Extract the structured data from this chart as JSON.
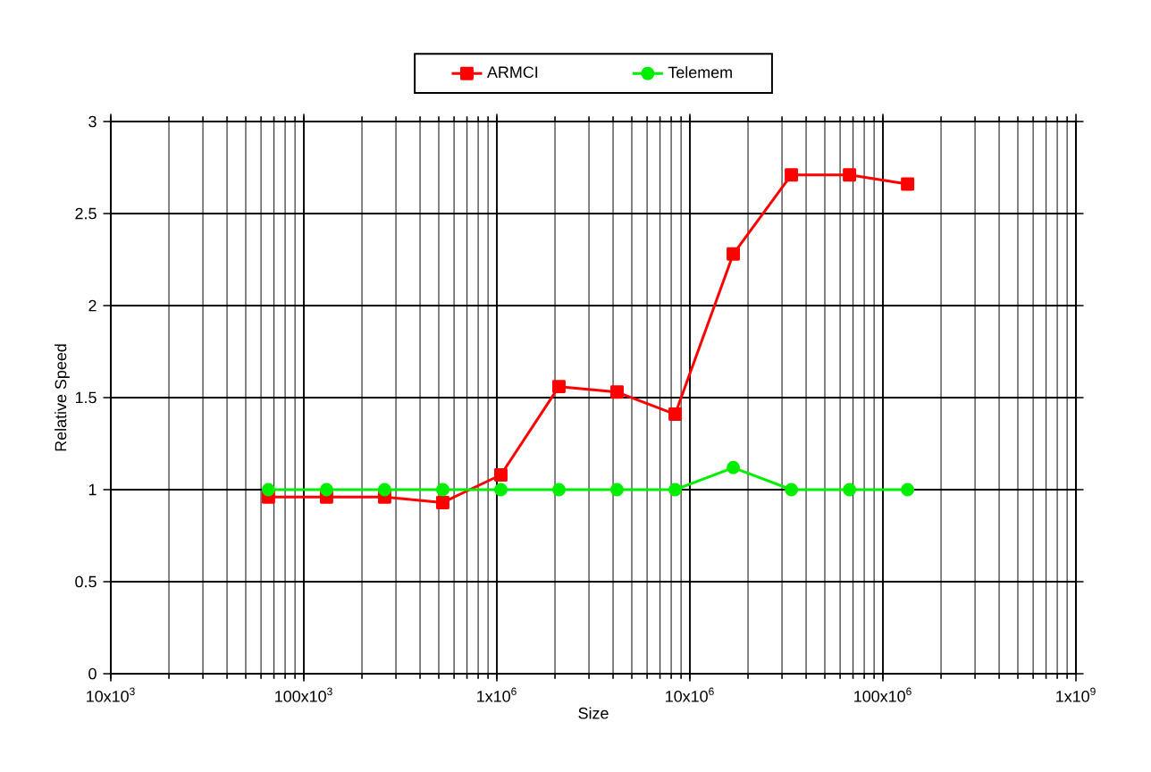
{
  "chart_data": {
    "type": "line",
    "xlabel": "Size",
    "ylabel": "Relative Speed",
    "x": [
      65536,
      131072,
      262144,
      524288,
      1048576,
      2097152,
      4194304,
      8388608,
      16777216,
      33554432,
      67108864,
      134217728
    ],
    "series": [
      {
        "name": "ARMCI",
        "color": "#ff0000",
        "marker": "square",
        "values": [
          0.96,
          0.96,
          0.96,
          0.93,
          1.08,
          1.56,
          1.53,
          1.41,
          2.28,
          2.71,
          2.71,
          2.66
        ]
      },
      {
        "name": "Telemem",
        "color": "#00ee00",
        "marker": "circle",
        "values": [
          1.0,
          1.0,
          1.0,
          1.0,
          1.0,
          1.0,
          1.0,
          1.0,
          1.12,
          1.0,
          1.0,
          1.0
        ]
      }
    ],
    "log": "x",
    "xlim": [
      10000,
      1000000000
    ],
    "xticks": [
      {
        "value": 10000,
        "label": "10x10$^{3}$"
      },
      {
        "value": 100000,
        "label": "100x10$^{3}$"
      },
      {
        "value": 1000000,
        "label": "1x10$^{6}$"
      },
      {
        "value": 10000000,
        "label": "10x10$^{6}$"
      },
      {
        "value": 100000000,
        "label": "100x10$^{6}$"
      },
      {
        "value": 1000000000,
        "label": "1x10$^{9}$"
      }
    ],
    "ylim": [
      0,
      3
    ],
    "yticks": [
      0,
      0.5,
      1,
      1.5,
      2,
      2.5,
      3
    ],
    "grid": true,
    "legend": "top",
    "line_style": "solid"
  }
}
